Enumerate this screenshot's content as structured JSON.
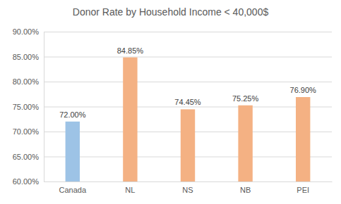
{
  "chart_data": {
    "type": "bar",
    "title": "Donor Rate by Household Income < 40,000$",
    "categories": [
      "Canada",
      "NL",
      "NS",
      "NB",
      "PEI"
    ],
    "values": [
      72,
      84.85,
      74.45,
      75.25,
      76.9
    ],
    "value_labels": [
      "72.00%",
      "84.85%",
      "74.45%",
      "75.25%",
      "76.90%"
    ],
    "colors": [
      "#9dc3e6",
      "#f4b183",
      "#f4b183",
      "#f4b183",
      "#f4b183"
    ],
    "ylim": [
      60,
      90
    ],
    "yticks": [
      {
        "value": 60,
        "label": "60.00%"
      },
      {
        "value": 65,
        "label": "65.00%"
      },
      {
        "value": 70,
        "label": "70.00%"
      },
      {
        "value": 75,
        "label": "75.00%"
      },
      {
        "value": 80,
        "label": "80.00%"
      },
      {
        "value": 85,
        "label": "85.00%"
      },
      {
        "value": 90,
        "label": "90.00%"
      }
    ],
    "grid": true,
    "data_labels": true
  }
}
